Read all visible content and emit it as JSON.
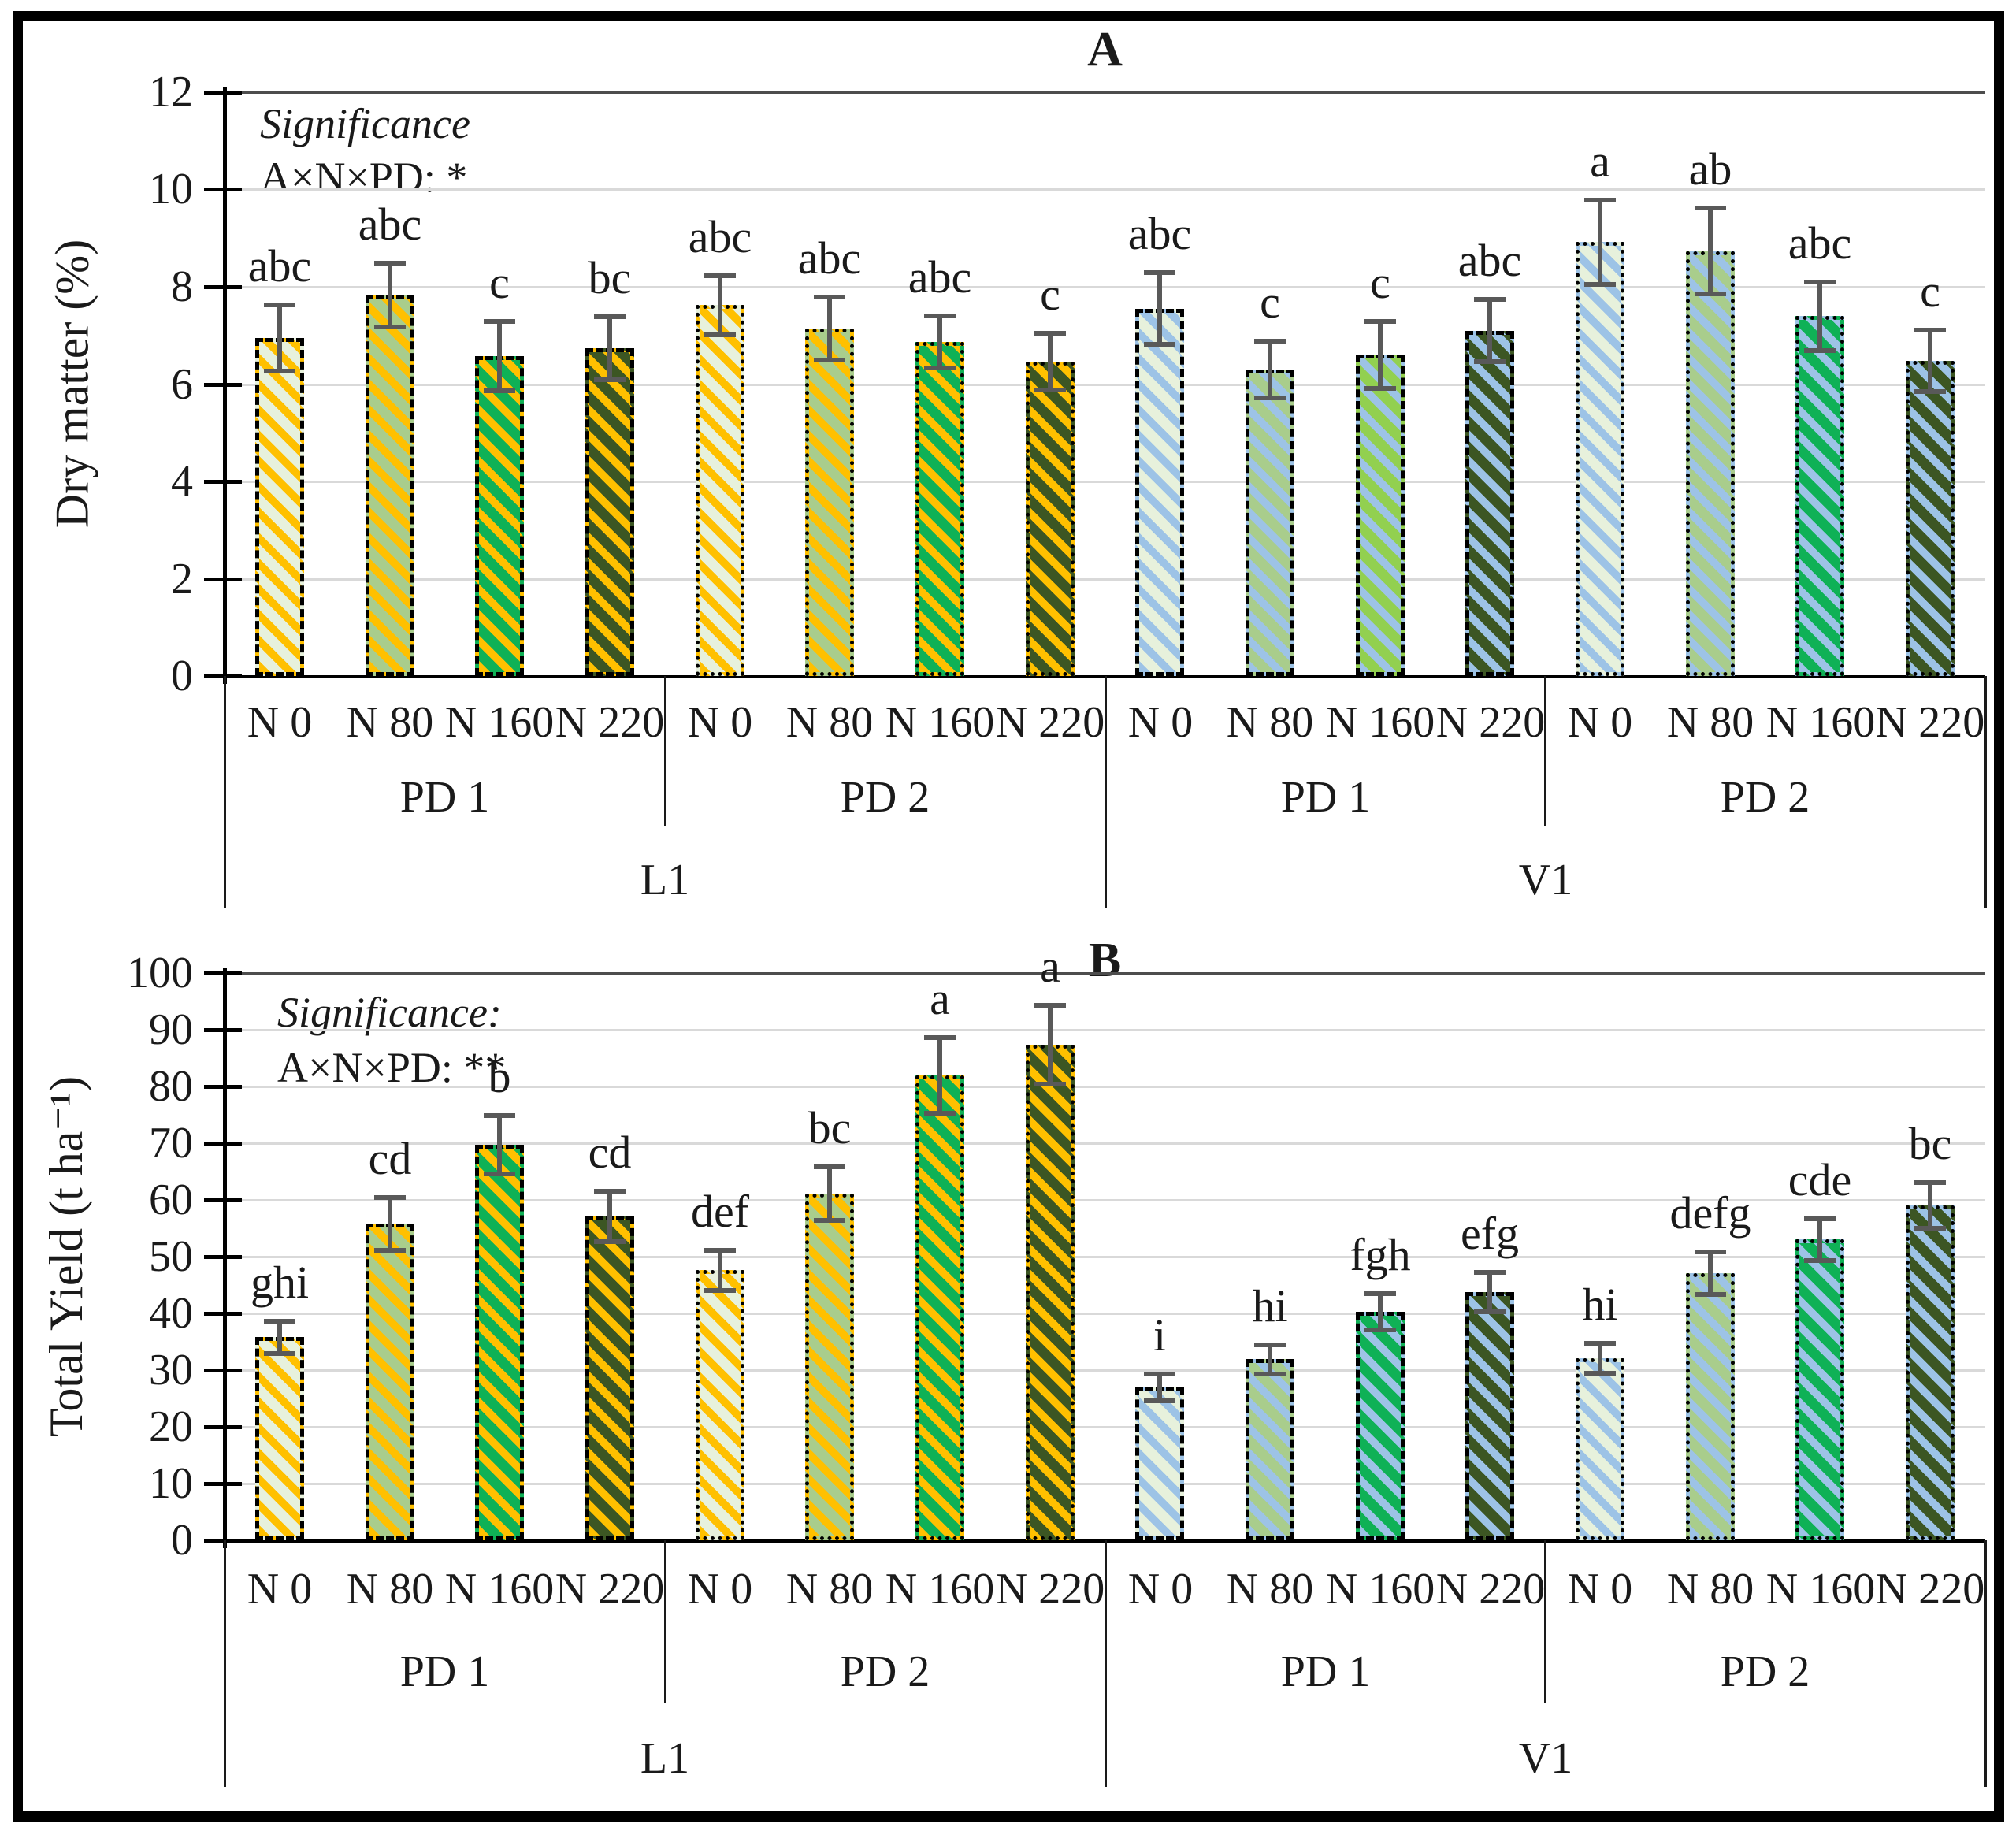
{
  "figure": {
    "border_color": "#000000",
    "background": "#ffffff",
    "panel_titles": [
      "A",
      "B"
    ]
  },
  "style": {
    "error_bar_color": "#595959",
    "grid_color": "#D9D9D9",
    "top_frame_color": "#4D4D4D",
    "axis_color": "#000000",
    "gold_stripe": "#FFC000",
    "blue_stripe": "#9DC3E6",
    "fill_n0": "#E7F1DC",
    "fill_n80": "#A9CD8C",
    "fill_n160": "#0FB156",
    "fill_n160_alt": "#92D050",
    "fill_n220": "#3C5623"
  },
  "chart_data": [
    {
      "type": "bar",
      "title": "A",
      "ylabel": "Dry matter (%)",
      "ylim": [
        0,
        12
      ],
      "ytick_step": 2,
      "yticks": [
        0,
        2,
        4,
        6,
        8,
        10,
        12
      ],
      "grid": true,
      "legend": "none",
      "significance": {
        "line1": "Significance",
        "line2": "A×N×PD: *"
      },
      "location_labels": [
        "L1",
        "V1"
      ],
      "groups": [
        {
          "location": "L1",
          "pd": "PD 1",
          "border": "dashed",
          "stripe": "#FFC000",
          "bars": [
            {
              "n": "N 0",
              "value": 6.95,
              "error": 0.7,
              "letter": "abc",
              "fill": "#E7F1DC"
            },
            {
              "n": "N 80",
              "value": 7.83,
              "error": 0.67,
              "letter": "abc",
              "fill": "#A9CD8C"
            },
            {
              "n": "N 160",
              "value": 6.57,
              "error": 0.73,
              "letter": "c",
              "fill": "#0FB156"
            },
            {
              "n": "N 220",
              "value": 6.74,
              "error": 0.66,
              "letter": "bc",
              "fill": "#3C5623"
            }
          ]
        },
        {
          "location": "L1",
          "pd": "PD 2",
          "border": "dotted",
          "stripe": "#FFC000",
          "bars": [
            {
              "n": "N 0",
              "value": 7.62,
              "error": 0.63,
              "letter": "abc",
              "fill": "#E7F1DC"
            },
            {
              "n": "N 80",
              "value": 7.14,
              "error": 0.66,
              "letter": "abc",
              "fill": "#A9CD8C"
            },
            {
              "n": "N 160",
              "value": 6.86,
              "error": 0.55,
              "letter": "abc",
              "fill": "#0FB156"
            },
            {
              "n": "N 220",
              "value": 6.46,
              "error": 0.6,
              "letter": "c",
              "fill": "#3C5623"
            }
          ]
        },
        {
          "location": "V1",
          "pd": "PD 1",
          "border": "dashed",
          "stripe": "#9DC3E6",
          "bars": [
            {
              "n": "N 0",
              "value": 7.55,
              "error": 0.75,
              "letter": "abc",
              "fill": "#E7F1DC"
            },
            {
              "n": "N 80",
              "value": 6.3,
              "error": 0.6,
              "letter": "c",
              "fill": "#A9CD8C"
            },
            {
              "n": "N 160",
              "value": 6.6,
              "error": 0.7,
              "letter": "c",
              "fill": "#92D050"
            },
            {
              "n": "N 220",
              "value": 7.1,
              "error": 0.65,
              "letter": "abc",
              "fill": "#3C5623"
            }
          ]
        },
        {
          "location": "V1",
          "pd": "PD 2",
          "border": "dotted",
          "stripe": "#9DC3E6",
          "bars": [
            {
              "n": "N 0",
              "value": 8.92,
              "error": 0.88,
              "letter": "a",
              "fill": "#E7F1DC"
            },
            {
              "n": "N 80",
              "value": 8.73,
              "error": 0.9,
              "letter": "ab",
              "fill": "#A9CD8C"
            },
            {
              "n": "N 160",
              "value": 7.4,
              "error": 0.72,
              "letter": "abc",
              "fill": "#0FB156"
            },
            {
              "n": "N 220",
              "value": 6.48,
              "error": 0.65,
              "letter": "c",
              "fill": "#3C5623"
            }
          ]
        }
      ]
    },
    {
      "type": "bar",
      "title": "B",
      "ylabel": "Total Yield (t ha⁻¹)",
      "ylim": [
        0,
        100
      ],
      "ytick_step": 10,
      "yticks": [
        0,
        10,
        20,
        30,
        40,
        50,
        60,
        70,
        80,
        90,
        100
      ],
      "grid": true,
      "legend": "none",
      "significance": {
        "line1": "Significance:",
        "line2": "A×N×PD: **"
      },
      "location_labels": [
        "L1",
        "V1"
      ],
      "groups": [
        {
          "location": "L1",
          "pd": "PD 1",
          "border": "dashed",
          "stripe": "#FFC000",
          "bars": [
            {
              "n": "N 0",
              "value": 35.8,
              "error": 3.0,
              "letter": "ghi",
              "fill": "#E7F1DC"
            },
            {
              "n": "N 80",
              "value": 55.8,
              "error": 4.8,
              "letter": "cd",
              "fill": "#A9CD8C"
            },
            {
              "n": "N 160",
              "value": 69.7,
              "error": 5.3,
              "letter": "b",
              "fill": "#0FB156"
            },
            {
              "n": "N 220",
              "value": 57.1,
              "error": 4.6,
              "letter": "cd",
              "fill": "#3C5623"
            }
          ]
        },
        {
          "location": "L1",
          "pd": "PD 2",
          "border": "dotted",
          "stripe": "#FFC000",
          "bars": [
            {
              "n": "N 0",
              "value": 47.6,
              "error": 3.7,
              "letter": "def",
              "fill": "#E7F1DC"
            },
            {
              "n": "N 80",
              "value": 61.1,
              "error": 4.9,
              "letter": "bc",
              "fill": "#A9CD8C"
            },
            {
              "n": "N 160",
              "value": 81.9,
              "error": 6.8,
              "letter": "a",
              "fill": "#0FB156"
            },
            {
              "n": "N 220",
              "value": 87.4,
              "error": 7.1,
              "letter": "a",
              "fill": "#3C5623"
            }
          ]
        },
        {
          "location": "V1",
          "pd": "PD 1",
          "border": "dashed",
          "stripe": "#9DC3E6",
          "bars": [
            {
              "n": "N 0",
              "value": 27.0,
              "error": 2.5,
              "letter": "i",
              "fill": "#E7F1DC"
            },
            {
              "n": "N 80",
              "value": 31.9,
              "error": 2.7,
              "letter": "hi",
              "fill": "#A9CD8C"
            },
            {
              "n": "N 160",
              "value": 40.3,
              "error": 3.3,
              "letter": "fgh",
              "fill": "#0FB156"
            },
            {
              "n": "N 220",
              "value": 43.8,
              "error": 3.6,
              "letter": "efg",
              "fill": "#3C5623"
            }
          ]
        },
        {
          "location": "V1",
          "pd": "PD 2",
          "border": "dotted",
          "stripe": "#9DC3E6",
          "bars": [
            {
              "n": "N 0",
              "value": 32.1,
              "error": 2.8,
              "letter": "hi",
              "fill": "#E7F1DC"
            },
            {
              "n": "N 80",
              "value": 47.1,
              "error": 3.9,
              "letter": "defg",
              "fill": "#A9CD8C"
            },
            {
              "n": "N 160",
              "value": 53.0,
              "error": 3.8,
              "letter": "cde",
              "fill": "#0FB156"
            },
            {
              "n": "N 220",
              "value": 59.0,
              "error": 4.2,
              "letter": "bc",
              "fill": "#3C5623"
            }
          ]
        }
      ]
    }
  ]
}
